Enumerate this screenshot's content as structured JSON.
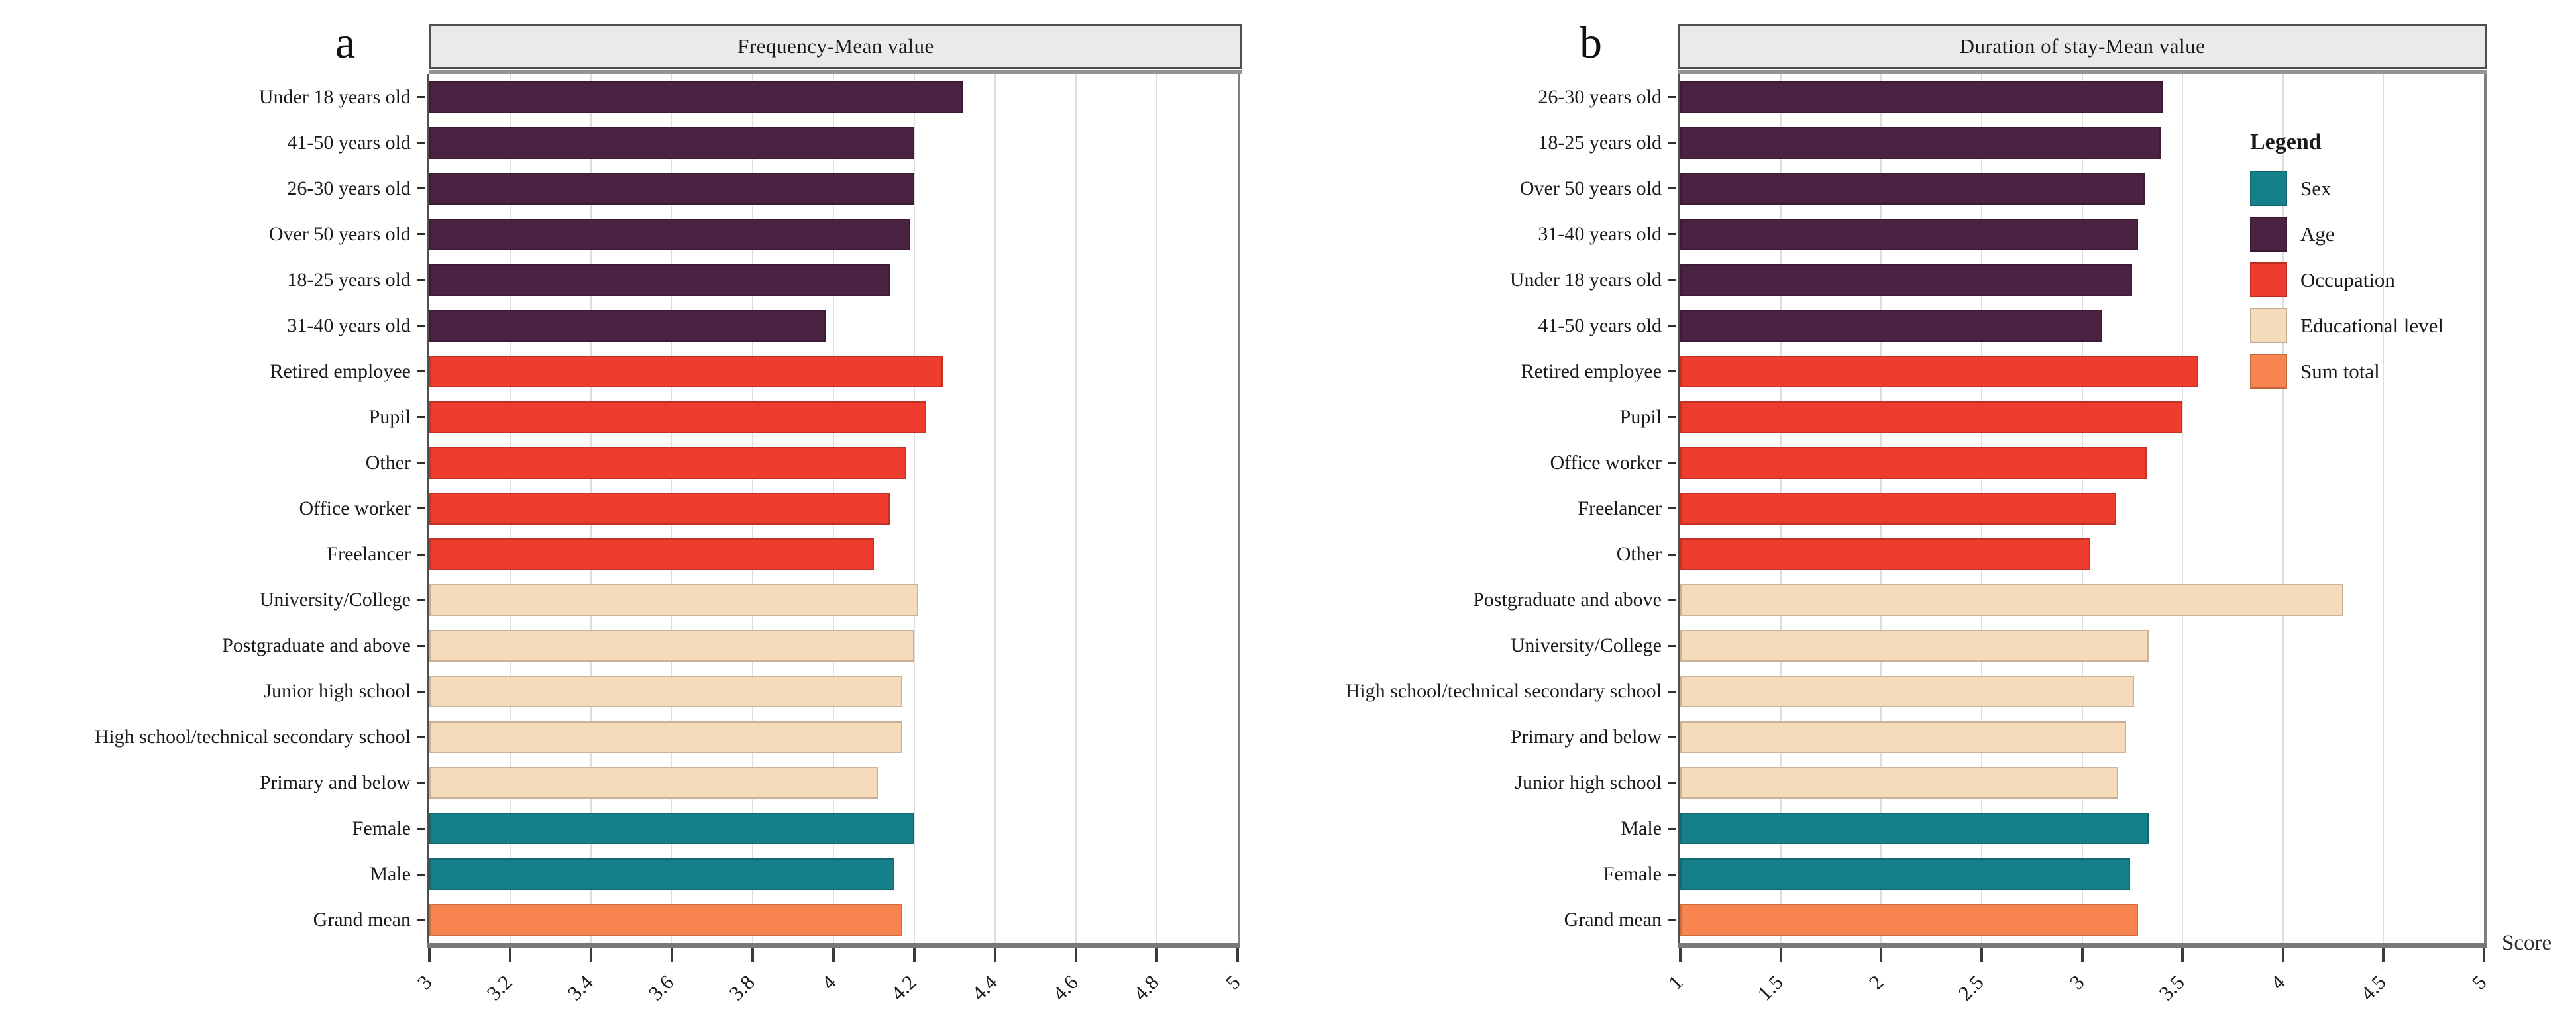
{
  "figure": {
    "panel_a_label": "a",
    "panel_b_label": "b",
    "legend": {
      "title": "Legend",
      "items": [
        {
          "label": "Sex",
          "group": "sex"
        },
        {
          "label": "Age",
          "group": "age"
        },
        {
          "label": "Occupation",
          "group": "occupation"
        },
        {
          "label": "Educational level",
          "group": "educational"
        },
        {
          "label": "Sum total",
          "group": "sum"
        }
      ]
    },
    "colors": {
      "sex": "#16808A",
      "age": "#4A2242",
      "occupation": "#EE3D2E",
      "educational": "#F5DBBA",
      "sum": "#F8854F",
      "header_bg": "#EAEAEA",
      "gridline": "#DEDEDE",
      "axis": "#787878"
    }
  },
  "chart_data": [
    {
      "id": "a",
      "type": "bar",
      "orientation": "horizontal",
      "title": "Frequency-Mean value",
      "xlabel": "",
      "xlim": [
        3,
        5
      ],
      "xtick_values": [
        3,
        3.2,
        3.4,
        3.6,
        3.8,
        4,
        4.2,
        4.4,
        4.6,
        4.8,
        5
      ],
      "xtick_labels": [
        "3",
        "3.2",
        "3.4",
        "3.6",
        "3.8",
        "4",
        "4.2",
        "4.4",
        "4.6",
        "4.8",
        "5"
      ],
      "gridlines": [
        3.2,
        3.4,
        3.6,
        3.8,
        4,
        4.2,
        4.4,
        4.6,
        4.8
      ],
      "bars": [
        {
          "label": "Under 18 years old",
          "group": "age",
          "value": 4.32
        },
        {
          "label": "41-50 years old",
          "group": "age",
          "value": 4.2
        },
        {
          "label": "26-30 years old",
          "group": "age",
          "value": 4.2
        },
        {
          "label": "Over 50 years old",
          "group": "age",
          "value": 4.19
        },
        {
          "label": "18-25 years old",
          "group": "age",
          "value": 4.14
        },
        {
          "label": "31-40 years old",
          "group": "age",
          "value": 3.98
        },
        {
          "label": "Retired employee",
          "group": "occupation",
          "value": 4.27
        },
        {
          "label": "Pupil",
          "group": "occupation",
          "value": 4.23
        },
        {
          "label": "Other",
          "group": "occupation",
          "value": 4.18
        },
        {
          "label": "Office worker",
          "group": "occupation",
          "value": 4.14
        },
        {
          "label": "Freelancer",
          "group": "occupation",
          "value": 4.1
        },
        {
          "label": "University/College",
          "group": "educational",
          "value": 4.21
        },
        {
          "label": "Postgraduate and above",
          "group": "educational",
          "value": 4.2
        },
        {
          "label": "Junior high school",
          "group": "educational",
          "value": 4.17
        },
        {
          "label": "High school/technical secondary school",
          "group": "educational",
          "value": 4.17
        },
        {
          "label": "Primary and below",
          "group": "educational",
          "value": 4.11
        },
        {
          "label": "Female",
          "group": "sex",
          "value": 4.2
        },
        {
          "label": "Male",
          "group": "sex",
          "value": 4.15
        },
        {
          "label": "Grand mean",
          "group": "sum",
          "value": 4.17
        }
      ]
    },
    {
      "id": "b",
      "type": "bar",
      "orientation": "horizontal",
      "title": "Duration of stay-Mean value",
      "xlabel": "Score",
      "xlim": [
        1,
        5
      ],
      "xtick_values": [
        1,
        1.5,
        2,
        2.5,
        3,
        3.5,
        4,
        4.5,
        5
      ],
      "xtick_labels": [
        "1",
        "1.5",
        "2",
        "2.5",
        "3",
        "3.5",
        "4",
        "4.5",
        "5"
      ],
      "gridlines": [
        1.5,
        2,
        2.5,
        3,
        3.5,
        4,
        4.5
      ],
      "bars": [
        {
          "label": "26-30 years old",
          "group": "age",
          "value": 3.4
        },
        {
          "label": "18-25 years old",
          "group": "age",
          "value": 3.39
        },
        {
          "label": "Over 50 years old",
          "group": "age",
          "value": 3.31
        },
        {
          "label": "31-40 years old",
          "group": "age",
          "value": 3.28
        },
        {
          "label": "Under 18 years old",
          "group": "age",
          "value": 3.25
        },
        {
          "label": "41-50 years old",
          "group": "age",
          "value": 3.1
        },
        {
          "label": "Retired employee",
          "group": "occupation",
          "value": 3.58
        },
        {
          "label": "Pupil",
          "group": "occupation",
          "value": 3.5
        },
        {
          "label": "Office worker",
          "group": "occupation",
          "value": 3.32
        },
        {
          "label": "Freelancer",
          "group": "occupation",
          "value": 3.17
        },
        {
          "label": "Other",
          "group": "occupation",
          "value": 3.04
        },
        {
          "label": "Postgraduate and above",
          "group": "educational",
          "value": 4.3
        },
        {
          "label": "University/College",
          "group": "educational",
          "value": 3.33
        },
        {
          "label": "High school/technical secondary school",
          "group": "educational",
          "value": 3.26
        },
        {
          "label": "Primary and below",
          "group": "educational",
          "value": 3.22
        },
        {
          "label": "Junior high school",
          "group": "educational",
          "value": 3.18
        },
        {
          "label": "Male",
          "group": "sex",
          "value": 3.33
        },
        {
          "label": "Female",
          "group": "sex",
          "value": 3.24
        },
        {
          "label": "Grand mean",
          "group": "sum",
          "value": 3.28
        }
      ]
    }
  ]
}
